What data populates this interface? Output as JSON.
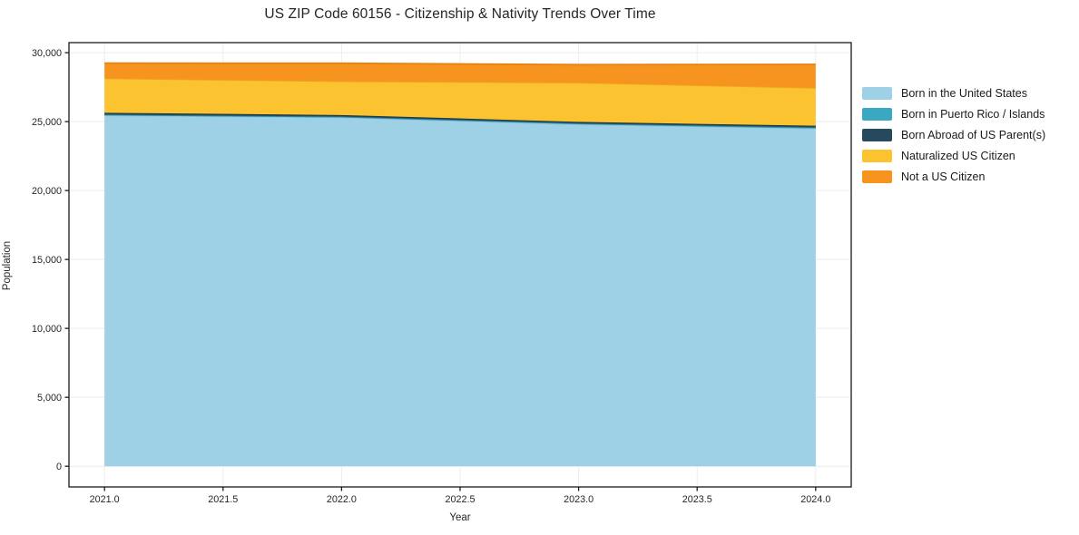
{
  "chart_data": {
    "type": "area",
    "stacked": true,
    "title": "US ZIP Code 60156 - Citizenship & Nativity Trends Over Time",
    "xlabel": "Year",
    "ylabel": "Population",
    "x": [
      2021,
      2022,
      2023,
      2024
    ],
    "series": [
      {
        "key": "born-us",
        "name": "Born in the United States",
        "color": "#9ed1e6",
        "edge_color": "#8ec4dc",
        "values": [
          25450,
          25300,
          24800,
          24500
        ]
      },
      {
        "key": "puerto-rico",
        "name": "Born in Puerto Rico / Islands",
        "color": "#3aa8c1",
        "edge_color": "#2d8ba1",
        "values": [
          60,
          60,
          70,
          80
        ]
      },
      {
        "key": "born-abroad",
        "name": "Born Abroad of US Parent(s)",
        "color": "#26495d",
        "edge_color": "#1b3749",
        "values": [
          130,
          120,
          110,
          120
        ]
      },
      {
        "key": "naturalized",
        "name": "Naturalized US Citizen",
        "color": "#fcc330",
        "edge_color": "#eda61e",
        "values": [
          2500,
          2450,
          2850,
          2750
        ]
      },
      {
        "key": "not-citizen",
        "name": "Not a US Citizen",
        "color": "#f79420",
        "edge_color": "#e8820e",
        "values": [
          1100,
          1300,
          1300,
          1700
        ]
      }
    ],
    "xlim": [
      2020.85,
      2024.15
    ],
    "ylim": [
      -1500,
      30730
    ],
    "x_ticks": {
      "values": [
        2021.0,
        2021.5,
        2022.0,
        2022.5,
        2023.0,
        2023.5,
        2024.0
      ],
      "labels": [
        "2021.0",
        "2021.5",
        "2022.0",
        "2022.5",
        "2023.0",
        "2023.5",
        "2024.0"
      ]
    },
    "y_ticks": {
      "values": [
        0,
        5000,
        10000,
        15000,
        20000,
        25000,
        30000
      ],
      "labels": [
        "0",
        "5,000",
        "10,000",
        "15,000",
        "20,000",
        "25,000",
        "30,000"
      ]
    },
    "grid": true,
    "grid_color": "#ececec",
    "spine_color": "#1a1a1a",
    "tick_label_color": "#262626",
    "legend_position": "right-outside"
  }
}
